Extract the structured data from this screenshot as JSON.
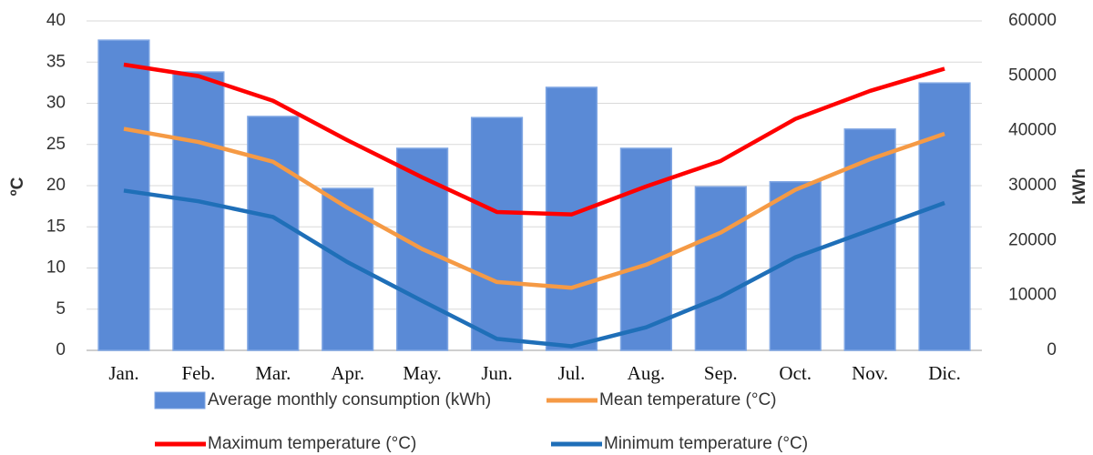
{
  "chart_data": {
    "type": "combo",
    "categories": [
      "Jan.",
      "Feb.",
      "Mar.",
      "Apr.",
      "May.",
      "Jun.",
      "Jul.",
      "Aug.",
      "Sep.",
      "Oct.",
      "Nov.",
      "Dic."
    ],
    "y_label": "ºC",
    "y2_label": "kWh",
    "ylim": [
      0,
      40
    ],
    "yticks": [
      0,
      5,
      10,
      15,
      20,
      25,
      30,
      35,
      40
    ],
    "y2lim": [
      0,
      60000
    ],
    "y2ticks": [
      0,
      10000,
      20000,
      30000,
      40000,
      50000,
      60000
    ],
    "grid": true,
    "series": [
      {
        "name": "Average monthly consumption (kWh)",
        "type": "bar",
        "axis": "y2",
        "color": "#5a8ad6",
        "values": [
          56500,
          50700,
          42600,
          29500,
          36800,
          42400,
          47900,
          36800,
          29800,
          30700,
          40300,
          48700
        ]
      },
      {
        "name": "Mean temperature (°C)",
        "type": "line",
        "axis": "y",
        "color": "#f59a45",
        "values": [
          26.9,
          25.3,
          22.9,
          17.3,
          12.3,
          8.3,
          7.6,
          10.4,
          14.3,
          19.5,
          23.2,
          26.3
        ]
      },
      {
        "name": "Maximum temperature (°C)",
        "type": "line",
        "axis": "y",
        "color": "#ff0000",
        "values": [
          34.7,
          33.3,
          30.3,
          25.5,
          21,
          16.8,
          16.5,
          19.9,
          23,
          28.1,
          31.5,
          34.2
        ]
      },
      {
        "name": "Minimum  temperature (°C)",
        "type": "line",
        "axis": "y",
        "color": "#1f6fb8",
        "values": [
          19.4,
          18.1,
          16.2,
          10.7,
          6,
          1.4,
          0.5,
          2.8,
          6.5,
          11.3,
          14.6,
          17.9
        ]
      }
    ]
  }
}
